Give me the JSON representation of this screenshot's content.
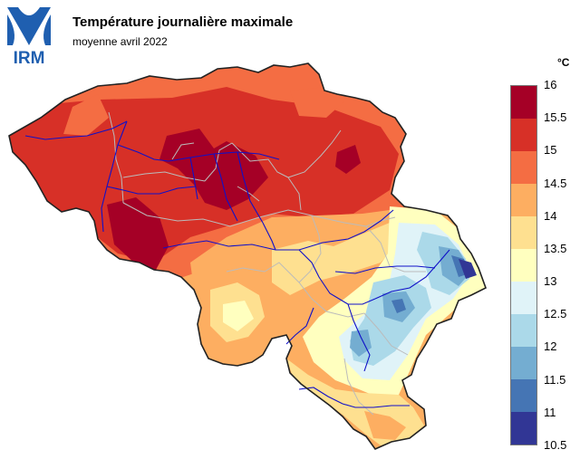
{
  "logo": {
    "text": "IRM",
    "color": "#1f5fb0"
  },
  "title": "Température journalière maximale",
  "subtitle": "moyenne avril 2022",
  "legend": {
    "unit": "°C",
    "labels": [
      "16",
      "15.5",
      "15",
      "14.5",
      "14",
      "13.5",
      "13",
      "12.5",
      "12",
      "11.5",
      "11",
      "10.5"
    ],
    "colors": [
      "#a50026",
      "#d73027",
      "#f46d43",
      "#fdae61",
      "#fee090",
      "#ffffbf",
      "#e0f3f8",
      "#abd9e9",
      "#74add1",
      "#4575b4",
      "#313695"
    ]
  },
  "map": {
    "region": "Belgium",
    "variable": "maximum daily temperature",
    "overlays": [
      "province boundaries",
      "rivers"
    ],
    "colors": {
      "border": "#222222",
      "provinces": "#bbbbbb",
      "rivers": "#1010c8"
    }
  }
}
